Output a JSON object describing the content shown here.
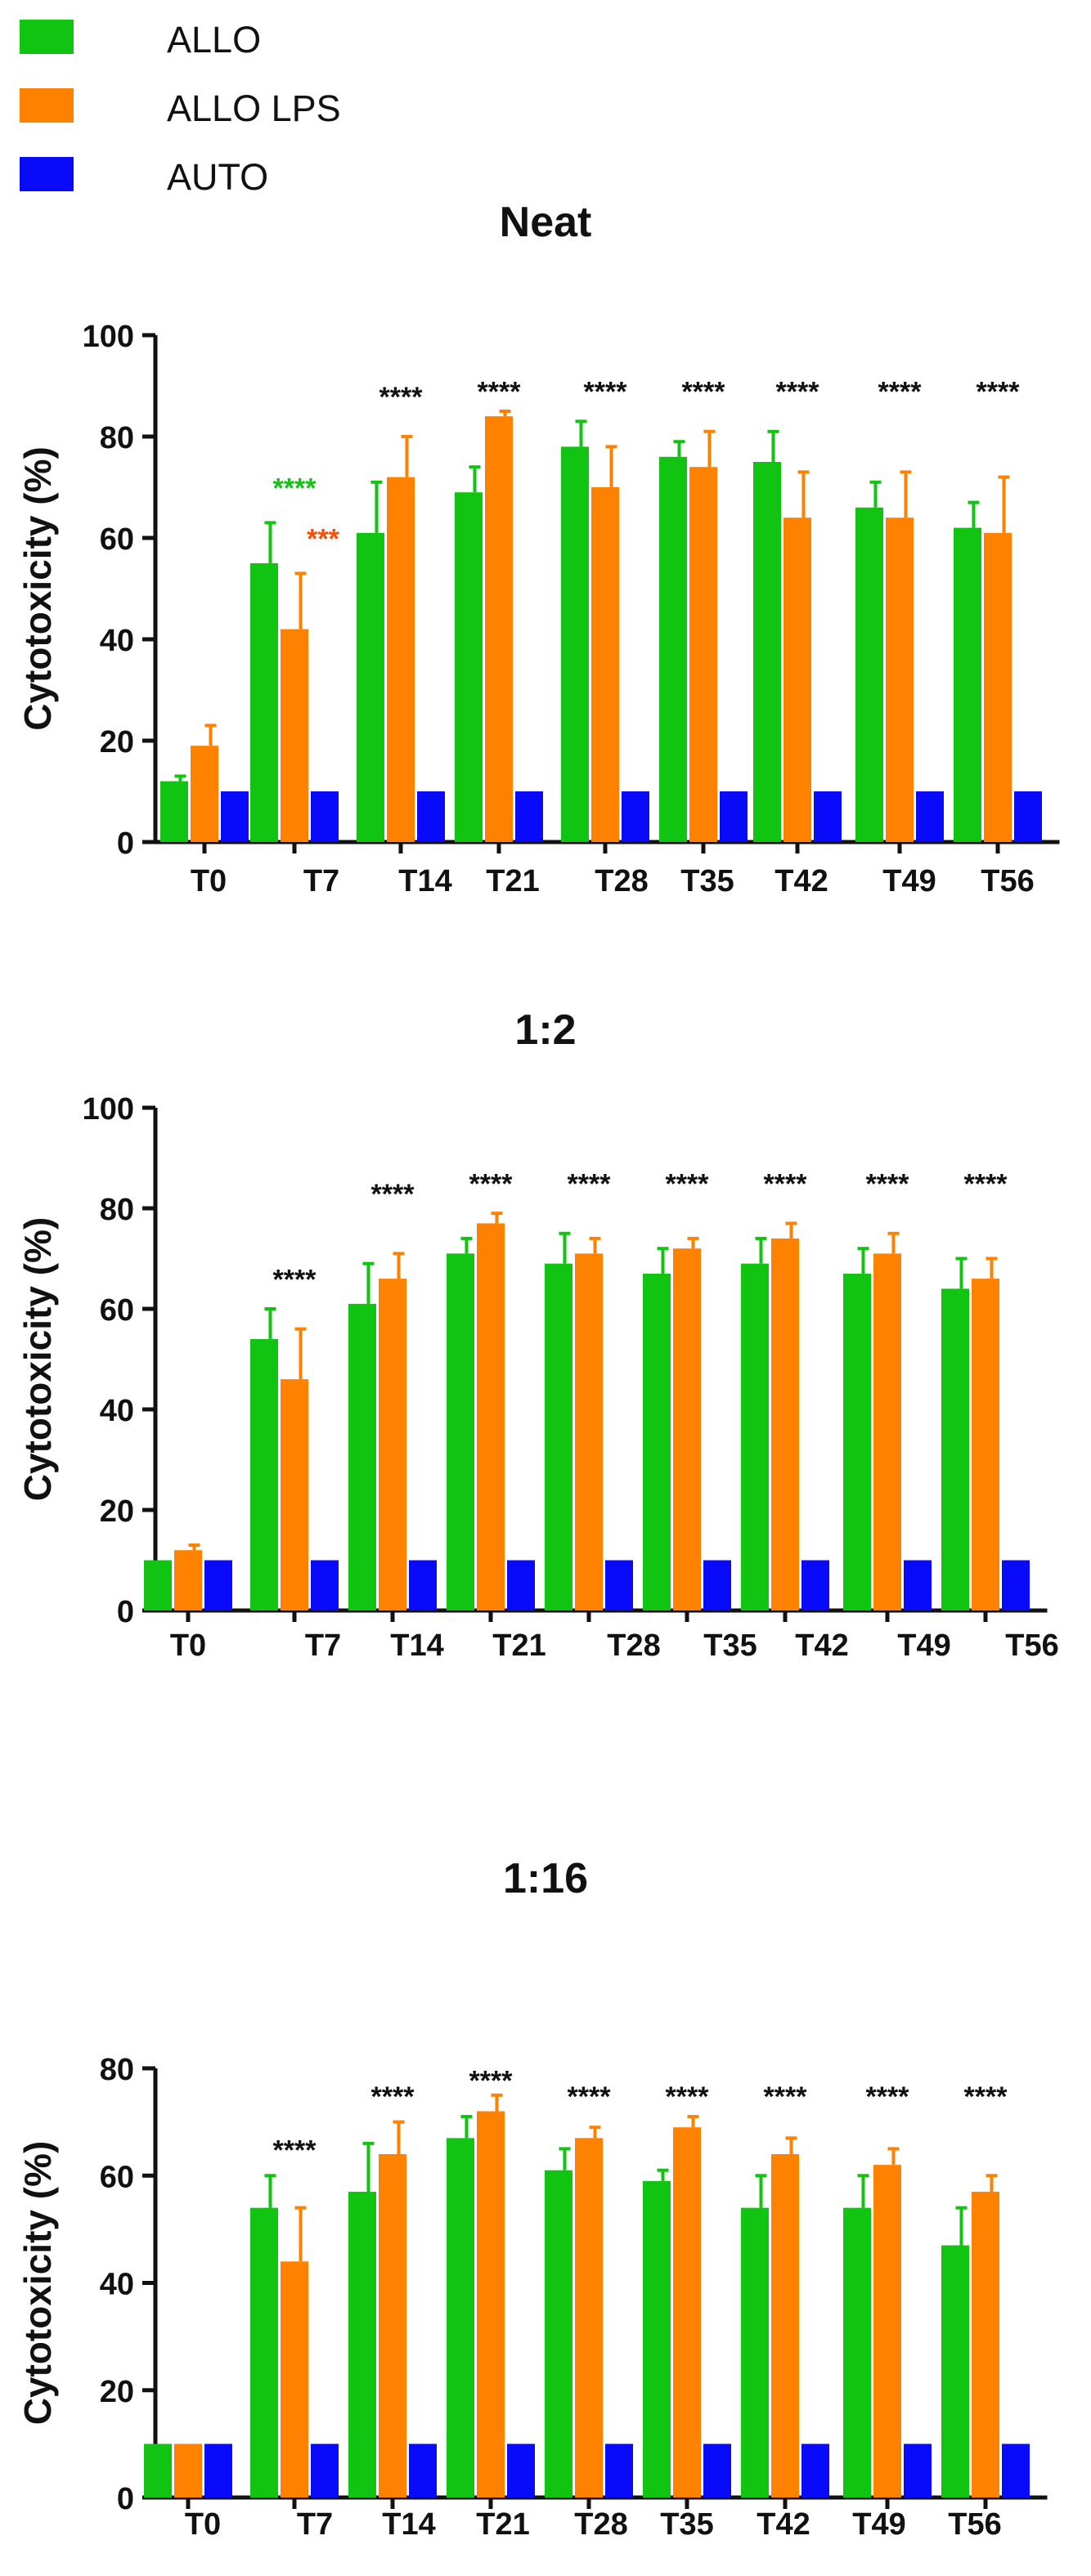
{
  "colors": {
    "allo": "#11c411",
    "allo_lps": "#fe8200",
    "auto": "#0a0afa",
    "sig_green": "#11c411",
    "sig_orange": "#ff4d00",
    "sig_black": "#111111"
  },
  "legend": [
    {
      "label": "ALLO",
      "color": "#11c411"
    },
    {
      "label": "ALLO LPS",
      "color": "#fe8200"
    },
    {
      "label": "AUTO",
      "color": "#0a0afa"
    }
  ],
  "chart_data": [
    {
      "type": "bar",
      "title": "Neat",
      "ylabel": "Cytotoxicity (%)",
      "xlabel": "",
      "ylim": [
        0,
        100
      ],
      "yticks": [
        0,
        20,
        40,
        60,
        80,
        100
      ],
      "categories": [
        "T0",
        "T7",
        "T14",
        "T21",
        "T28",
        "T35",
        "T42",
        "T49",
        "T56"
      ],
      "series": [
        {
          "name": "ALLO",
          "values": [
            12,
            55,
            61,
            69,
            78,
            76,
            75,
            66,
            62
          ],
          "errors": [
            1,
            8,
            10,
            5,
            5,
            3,
            6,
            5,
            5
          ]
        },
        {
          "name": "ALLO LPS",
          "values": [
            19,
            42,
            72,
            84,
            70,
            74,
            64,
            64,
            61
          ],
          "errors": [
            4,
            11,
            8,
            1,
            8,
            7,
            9,
            9,
            11
          ]
        },
        {
          "name": "AUTO",
          "values": [
            10,
            10,
            10,
            10,
            10,
            10,
            10,
            10,
            10
          ],
          "errors": [
            0,
            0,
            0,
            0,
            0,
            0,
            0,
            0,
            0
          ]
        }
      ],
      "annotations": [
        {
          "category": "T7",
          "text": "****",
          "value": 68,
          "color": "#11c411",
          "offset": 0
        },
        {
          "category": "T7",
          "text": "***",
          "value": 58,
          "color": "#ff4d00",
          "offset": 0.35
        },
        {
          "category": "T14",
          "text": "****",
          "value": 86,
          "color": "#111111",
          "offset": 0
        },
        {
          "category": "T21",
          "text": "****",
          "value": 87,
          "color": "#111111",
          "offset": 0
        },
        {
          "category": "T28",
          "text": "****",
          "value": 87,
          "color": "#111111",
          "offset": 0
        },
        {
          "category": "T35",
          "text": "****",
          "value": 87,
          "color": "#111111",
          "offset": 0
        },
        {
          "category": "T42",
          "text": "****",
          "value": 87,
          "color": "#111111",
          "offset": 0
        },
        {
          "category": "T49",
          "text": "****",
          "value": 87,
          "color": "#111111",
          "offset": 0
        },
        {
          "category": "T56",
          "text": "****",
          "value": 87,
          "color": "#111111",
          "offset": 0
        }
      ]
    },
    {
      "type": "bar",
      "title": "1:2",
      "ylabel": "Cytotoxicity (%)",
      "xlabel": "",
      "ylim": [
        0,
        100
      ],
      "yticks": [
        0,
        20,
        40,
        60,
        80,
        100
      ],
      "categories": [
        "T0",
        "T7",
        "T14",
        "T21",
        "T28",
        "T35",
        "T42",
        "T49",
        "T56"
      ],
      "series": [
        {
          "name": "ALLO",
          "values": [
            10,
            54,
            61,
            71,
            69,
            67,
            69,
            67,
            64
          ],
          "errors": [
            0,
            6,
            8,
            3,
            6,
            5,
            5,
            5,
            6
          ]
        },
        {
          "name": "ALLO LPS",
          "values": [
            12,
            46,
            66,
            77,
            71,
            72,
            74,
            71,
            66
          ],
          "errors": [
            1,
            10,
            5,
            2,
            3,
            2,
            3,
            4,
            4
          ]
        },
        {
          "name": "AUTO",
          "values": [
            10,
            10,
            10,
            10,
            10,
            10,
            10,
            10,
            10
          ],
          "errors": [
            0,
            0,
            0,
            0,
            0,
            0,
            0,
            0,
            0
          ]
        }
      ],
      "annotations": [
        {
          "category": "T7",
          "text": "****",
          "value": 64,
          "color": "#111111",
          "offset": 0
        },
        {
          "category": "T14",
          "text": "****",
          "value": 81,
          "color": "#111111",
          "offset": 0
        },
        {
          "category": "T21",
          "text": "****",
          "value": 83,
          "color": "#111111",
          "offset": 0
        },
        {
          "category": "T28",
          "text": "****",
          "value": 83,
          "color": "#111111",
          "offset": 0
        },
        {
          "category": "T35",
          "text": "****",
          "value": 83,
          "color": "#111111",
          "offset": 0
        },
        {
          "category": "T42",
          "text": "****",
          "value": 83,
          "color": "#111111",
          "offset": 0
        },
        {
          "category": "T49",
          "text": "****",
          "value": 83,
          "color": "#111111",
          "offset": 0
        },
        {
          "category": "T56",
          "text": "****",
          "value": 83,
          "color": "#111111",
          "offset": 0
        }
      ]
    },
    {
      "type": "bar",
      "title": "1:16",
      "ylabel": "Cytotoxicity (%)",
      "xlabel": "",
      "ylim": [
        0,
        80
      ],
      "yticks": [
        0,
        20,
        40,
        60,
        80
      ],
      "categories": [
        "T0",
        "T7",
        "T14",
        "T21",
        "T28",
        "T35",
        "T42",
        "T49",
        "T56"
      ],
      "series": [
        {
          "name": "ALLO",
          "values": [
            10,
            54,
            57,
            67,
            61,
            59,
            54,
            54,
            47
          ],
          "errors": [
            0,
            6,
            9,
            4,
            4,
            2,
            6,
            6,
            7
          ]
        },
        {
          "name": "ALLO LPS",
          "values": [
            10,
            44,
            64,
            72,
            67,
            69,
            64,
            62,
            57
          ],
          "errors": [
            0,
            10,
            6,
            3,
            2,
            2,
            3,
            3,
            3
          ]
        },
        {
          "name": "AUTO",
          "values": [
            10,
            10,
            10,
            10,
            10,
            10,
            10,
            10,
            10
          ],
          "errors": [
            0,
            0,
            0,
            0,
            0,
            0,
            0,
            0,
            0
          ]
        }
      ],
      "annotations": [
        {
          "category": "T7",
          "text": "****",
          "value": 63,
          "color": "#111111",
          "offset": 0
        },
        {
          "category": "T14",
          "text": "****",
          "value": 73,
          "color": "#111111",
          "offset": 0
        },
        {
          "category": "T21",
          "text": "****",
          "value": 76,
          "color": "#111111",
          "offset": 0
        },
        {
          "category": "T28",
          "text": "****",
          "value": 73,
          "color": "#111111",
          "offset": 0
        },
        {
          "category": "T35",
          "text": "****",
          "value": 73,
          "color": "#111111",
          "offset": 0
        },
        {
          "category": "T42",
          "text": "****",
          "value": 73,
          "color": "#111111",
          "offset": 0
        },
        {
          "category": "T49",
          "text": "****",
          "value": 73,
          "color": "#111111",
          "offset": 0
        },
        {
          "category": "T56",
          "text": "****",
          "value": 73,
          "color": "#111111",
          "offset": 0
        }
      ]
    }
  ]
}
